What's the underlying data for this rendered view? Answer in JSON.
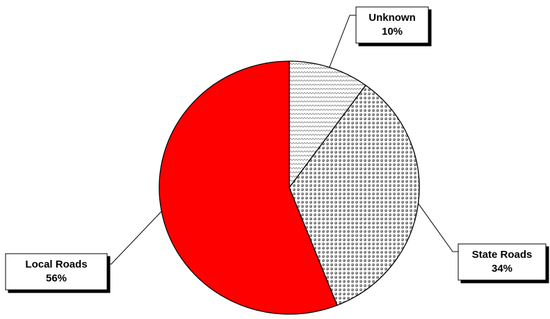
{
  "chart_data": {
    "type": "pie",
    "slices": [
      {
        "label": "Unknown",
        "value": 10,
        "display": "10%",
        "fill": "pattern-wave",
        "color": "#ffffff"
      },
      {
        "label": "State Roads",
        "value": 34,
        "display": "34%",
        "fill": "pattern-dots",
        "color": "#ffffff"
      },
      {
        "label": "Local Roads",
        "value": 56,
        "display": "56%",
        "fill": "solid",
        "color": "#ff0000"
      }
    ],
    "start": "12 o'clock",
    "direction": "clockwise",
    "legend": "none",
    "labels": "callout boxes with leader lines, name and percent"
  }
}
